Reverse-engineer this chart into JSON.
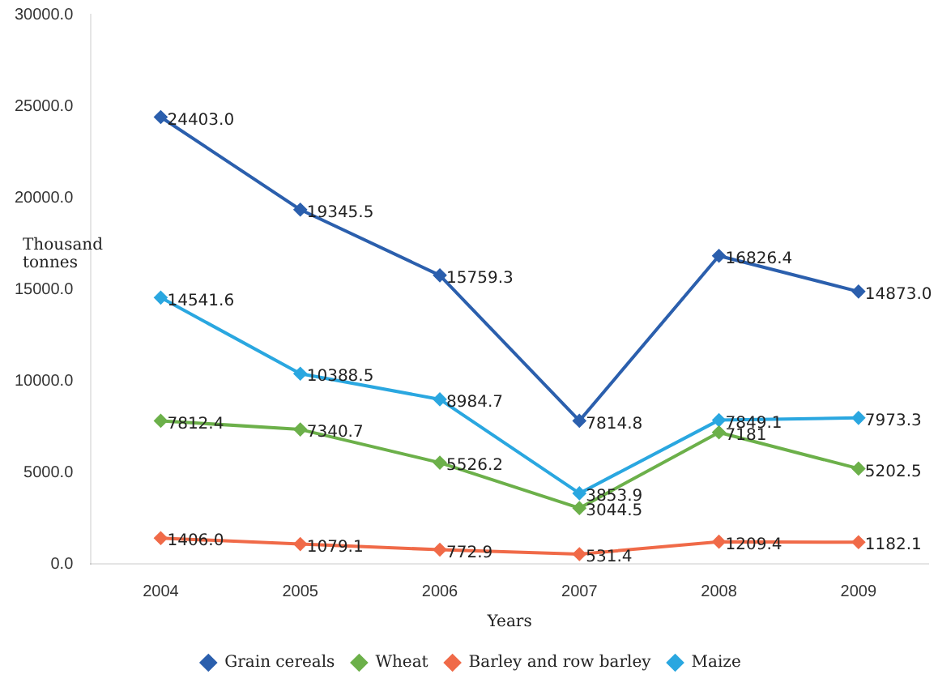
{
  "chart_data": {
    "type": "line",
    "xlabel": "Years",
    "ylabel": "Thousand tonnes",
    "categories": [
      "2004",
      "2005",
      "2006",
      "2007",
      "2008",
      "2009"
    ],
    "series": [
      {
        "name": "Grain cereals",
        "color": "#2b5fad",
        "values": [
          24403.0,
          19345.5,
          15759.3,
          7814.8,
          16826.4,
          14873.0
        ],
        "value_labels": [
          "24403.0",
          "19345.5",
          "15759.3",
          "7814.8",
          "16826.4",
          "14873.0"
        ]
      },
      {
        "name": "Wheat",
        "color": "#6cb04a",
        "values": [
          7812.4,
          7340.7,
          5526.2,
          3044.5,
          7181,
          5202.5
        ],
        "value_labels": [
          "7812.4",
          "7340.7",
          "5526.2",
          "3044.5",
          "7181",
          "5202.5"
        ]
      },
      {
        "name": "Barley and row barley",
        "color": "#f06a48",
        "values": [
          1406.0,
          1079.1,
          772.9,
          531.4,
          1209.4,
          1182.1
        ],
        "value_labels": [
          "1406.0",
          "1079.1",
          "772.9",
          "531.4",
          "1209.4",
          "1182.1"
        ]
      },
      {
        "name": "Maize",
        "color": "#2aa7e0",
        "values": [
          14541.6,
          10388.5,
          8984.7,
          3853.9,
          7849.1,
          7973.3
        ],
        "value_labels": [
          "14541.6",
          "10388.5",
          "8984.7",
          "3853.9",
          "7849.1",
          "7973.3"
        ]
      }
    ],
    "ylim": [
      0,
      30000
    ],
    "yticks": [
      {
        "value": 0,
        "label": "0.0"
      },
      {
        "value": 5000,
        "label": "5000.0"
      },
      {
        "value": 10000,
        "label": "10000.0"
      },
      {
        "value": 15000,
        "label": "15000.0"
      },
      {
        "value": 20000,
        "label": "20000.0"
      },
      {
        "value": 25000,
        "label": "25000.0"
      },
      {
        "value": 30000,
        "label": "30000.0"
      }
    ],
    "grid": false,
    "legend": "bottom",
    "marker": "diamond",
    "line_style": "solid"
  }
}
